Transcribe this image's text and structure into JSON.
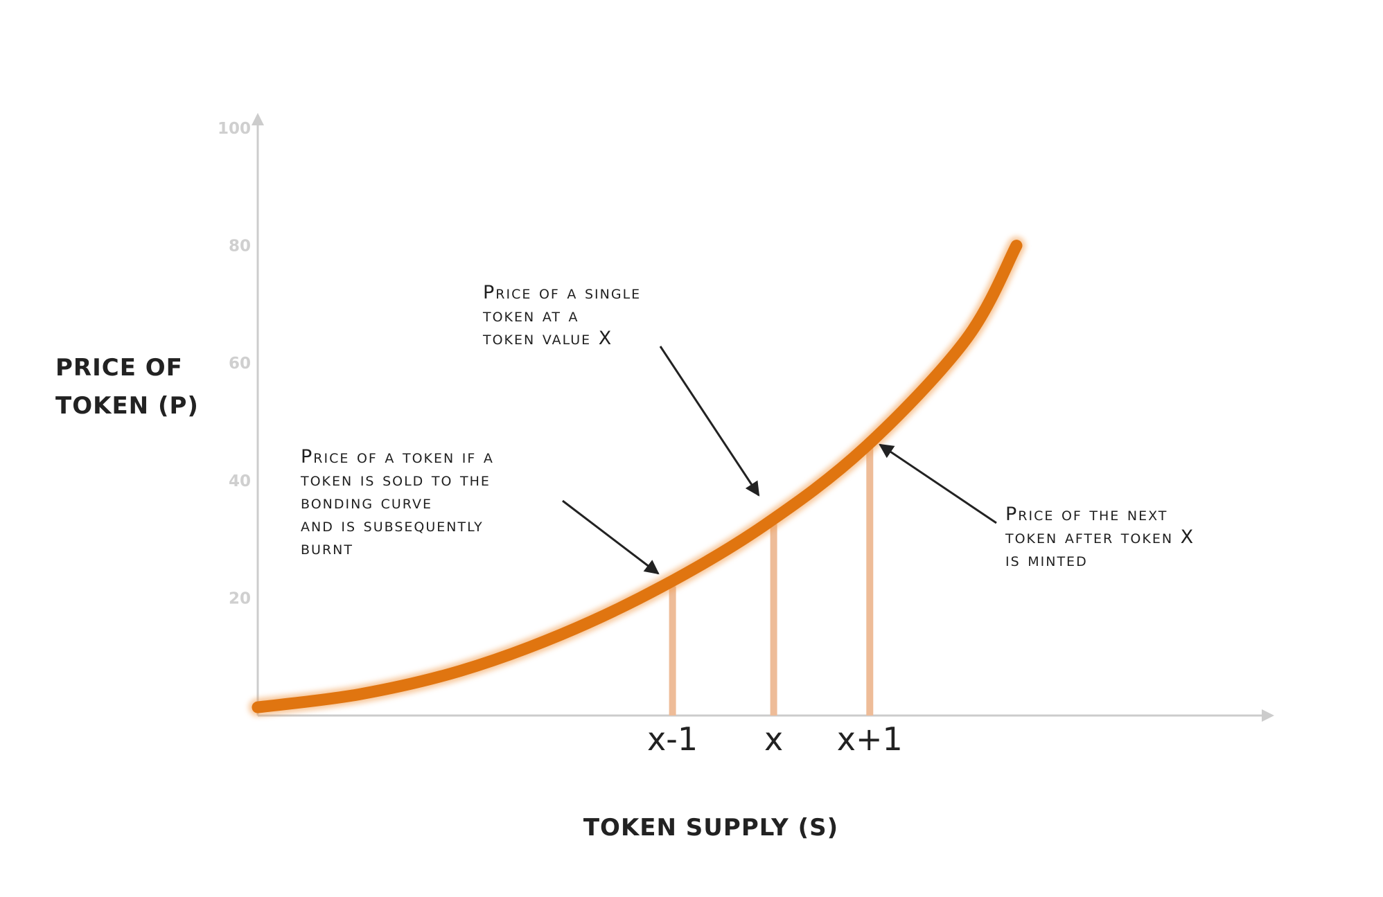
{
  "chart_data": {
    "type": "line",
    "title": "",
    "ylabel_lines": [
      "PRICE OF",
      "TOKEN (P)"
    ],
    "xlabel": "TOKEN SUPPLY (S)",
    "ylim": [
      0,
      100
    ],
    "yticks": [
      "100",
      "80",
      "60",
      "40",
      "20"
    ],
    "ytick_values": [
      100,
      80,
      60,
      40,
      20
    ],
    "grid": false,
    "curve": {
      "x": [
        0,
        10,
        20,
        30,
        40,
        50,
        60,
        70,
        75
      ],
      "y": [
        1.4,
        3.6,
        7.6,
        13.8,
        22.0,
        32.3,
        45.6,
        64.0,
        80.0
      ]
    },
    "x_markers": [
      {
        "label": "x-1",
        "x": 41,
        "y": 22.0
      },
      {
        "label": "x",
        "x": 51,
        "y": 32.6
      },
      {
        "label": "x+1",
        "x": 60.5,
        "y": 46.4
      }
    ],
    "annotations": [
      {
        "lines": [
          "Price of a single",
          "token at a",
          "token value X"
        ]
      },
      {
        "lines": [
          "Price of a token if a",
          "token is sold to the",
          "bonding curve",
          "and is subsequently",
          "burnt"
        ]
      },
      {
        "lines": [
          "Price of the next",
          "token after token X",
          "is minted"
        ]
      }
    ],
    "colors": {
      "curve": "#e07510",
      "marker_bars": "#eebc98",
      "axis": "#cccccc",
      "text": "#222222",
      "tick_text": "#cfcfcf",
      "arrow": "#222222"
    }
  }
}
